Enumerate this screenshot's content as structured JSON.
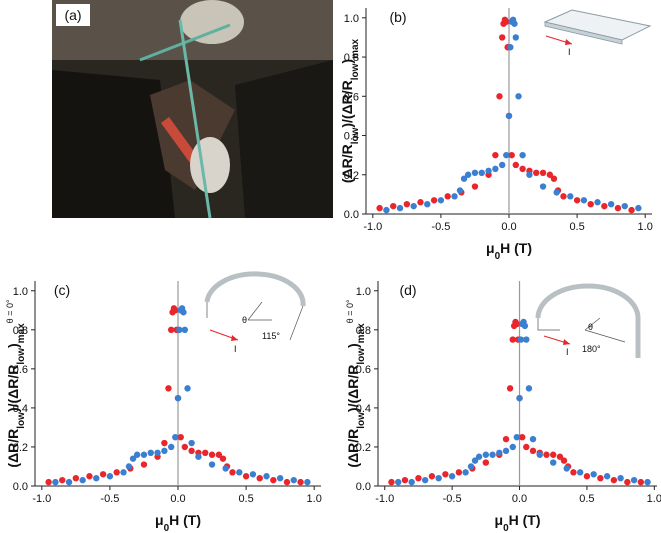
{
  "photo": {
    "label": "(a)"
  },
  "chart_data": [
    {
      "type": "scatter",
      "panel_label": "(b)",
      "inset_labels": {
        "current": "I"
      },
      "xlabel_parts": [
        {
          "text": "μ"
        },
        {
          "text": "0",
          "style": "sub"
        },
        {
          "text": "H (T)"
        }
      ],
      "ylabel_parts": [
        {
          "text": "(ΔR/R"
        },
        {
          "text": "low",
          "style": "sub"
        },
        {
          "text": ")/(ΔR/R"
        },
        {
          "text": "low",
          "style": "sub"
        },
        {
          "text": ")"
        },
        {
          "text": "max",
          "style": "sub"
        }
      ],
      "xlim": [
        -1.05,
        1.05
      ],
      "ylim": [
        0,
        1.05
      ],
      "xticks": [
        {
          "value": -1.0,
          "label": "-1.0"
        },
        -0.5,
        {
          "value": 0.0,
          "label": "0.0"
        },
        0.5,
        {
          "value": 1.0,
          "label": "1.0"
        }
      ],
      "yticks": [
        {
          "value": 0.0,
          "label": "0.0"
        },
        0.2,
        0.4,
        0.6,
        0.8,
        {
          "value": 1.0,
          "label": "1.0"
        }
      ],
      "series": [
        {
          "color": "#e8262b",
          "x": [
            -0.95,
            -0.85,
            -0.75,
            -0.65,
            -0.55,
            -0.45,
            -0.35,
            -0.25,
            -0.15,
            -0.1,
            -0.07,
            -0.05,
            -0.04,
            -0.03,
            -0.02,
            -0.01,
            0.0,
            0.02,
            0.05,
            0.1,
            0.15,
            0.2,
            0.25,
            0.3,
            0.33,
            0.36,
            0.4,
            0.5,
            0.6,
            0.7,
            0.8,
            0.9
          ],
          "values": [
            0.03,
            0.04,
            0.05,
            0.06,
            0.07,
            0.09,
            0.11,
            0.14,
            0.2,
            0.3,
            0.6,
            0.9,
            0.97,
            0.99,
            0.98,
            0.85,
            0.5,
            0.3,
            0.25,
            0.23,
            0.22,
            0.21,
            0.21,
            0.2,
            0.18,
            0.12,
            0.09,
            0.07,
            0.05,
            0.04,
            0.03,
            0.02
          ]
        },
        {
          "color": "#3b7fd1",
          "x": [
            0.95,
            0.85,
            0.75,
            0.65,
            0.55,
            0.45,
            0.35,
            0.25,
            0.15,
            0.1,
            0.07,
            0.05,
            0.04,
            0.03,
            0.02,
            0.01,
            0.0,
            -0.02,
            -0.05,
            -0.1,
            -0.15,
            -0.2,
            -0.25,
            -0.3,
            -0.33,
            -0.36,
            -0.4,
            -0.5,
            -0.6,
            -0.7,
            -0.8,
            -0.9
          ],
          "values": [
            0.03,
            0.04,
            0.05,
            0.06,
            0.07,
            0.09,
            0.11,
            0.14,
            0.2,
            0.3,
            0.6,
            0.9,
            0.97,
            0.99,
            0.98,
            0.85,
            0.5,
            0.3,
            0.25,
            0.23,
            0.22,
            0.21,
            0.21,
            0.2,
            0.18,
            0.12,
            0.09,
            0.07,
            0.05,
            0.04,
            0.03,
            0.02
          ]
        }
      ]
    },
    {
      "type": "scatter",
      "panel_label": "(c)",
      "inset_labels": {
        "current": "I",
        "angle_symbol": "θ",
        "angle": "115°"
      },
      "xlabel_parts": [
        {
          "text": "μ"
        },
        {
          "text": "0",
          "style": "sub"
        },
        {
          "text": "H (T)"
        }
      ],
      "ylabel_parts": [
        {
          "text": "(ΔR/R"
        },
        {
          "text": "low",
          "style": "sub"
        },
        {
          "text": ")/(ΔR/R"
        },
        {
          "text": "low",
          "style": "sub"
        },
        {
          "text": ")"
        },
        {
          "text": "max",
          "style": "sub"
        },
        {
          "text": "θ = 0°",
          "style": "sup"
        }
      ],
      "xlim": [
        -1.05,
        1.05
      ],
      "ylim": [
        0,
        1.05
      ],
      "xticks": [
        {
          "value": -1.0,
          "label": "-1.0"
        },
        -0.5,
        {
          "value": 0.0,
          "label": "0.0"
        },
        0.5,
        {
          "value": 1.0,
          "label": "1.0"
        }
      ],
      "yticks": [
        {
          "value": 0.0,
          "label": "0.0"
        },
        0.2,
        0.4,
        0.6,
        0.8,
        {
          "value": 1.0,
          "label": "1.0"
        }
      ],
      "series": [
        {
          "color": "#e8262b",
          "x": [
            -0.95,
            -0.85,
            -0.75,
            -0.65,
            -0.55,
            -0.45,
            -0.35,
            -0.25,
            -0.15,
            -0.1,
            -0.07,
            -0.05,
            -0.04,
            -0.03,
            -0.02,
            -0.01,
            0.0,
            0.02,
            0.05,
            0.1,
            0.15,
            0.2,
            0.25,
            0.3,
            0.33,
            0.36,
            0.4,
            0.5,
            0.6,
            0.7,
            0.8,
            0.9
          ],
          "values": [
            0.02,
            0.03,
            0.04,
            0.05,
            0.06,
            0.07,
            0.09,
            0.11,
            0.15,
            0.22,
            0.5,
            0.8,
            0.89,
            0.91,
            0.9,
            0.8,
            0.45,
            0.25,
            0.2,
            0.18,
            0.17,
            0.17,
            0.16,
            0.16,
            0.14,
            0.1,
            0.07,
            0.05,
            0.04,
            0.03,
            0.02,
            0.02
          ]
        },
        {
          "color": "#3b7fd1",
          "x": [
            0.95,
            0.85,
            0.75,
            0.65,
            0.55,
            0.45,
            0.35,
            0.25,
            0.15,
            0.1,
            0.07,
            0.05,
            0.04,
            0.03,
            0.02,
            0.01,
            0.0,
            -0.02,
            -0.05,
            -0.1,
            -0.15,
            -0.2,
            -0.25,
            -0.3,
            -0.33,
            -0.36,
            -0.4,
            -0.5,
            -0.6,
            -0.7,
            -0.8,
            -0.9
          ],
          "values": [
            0.02,
            0.03,
            0.04,
            0.05,
            0.06,
            0.07,
            0.09,
            0.11,
            0.15,
            0.22,
            0.5,
            0.8,
            0.89,
            0.91,
            0.9,
            0.8,
            0.45,
            0.25,
            0.2,
            0.18,
            0.17,
            0.17,
            0.16,
            0.16,
            0.14,
            0.1,
            0.07,
            0.05,
            0.04,
            0.03,
            0.02,
            0.02
          ]
        }
      ]
    },
    {
      "type": "scatter",
      "panel_label": "(d)",
      "inset_labels": {
        "current": "I",
        "angle_symbol": "θ",
        "angle": "180°"
      },
      "xlabel_parts": [
        {
          "text": "μ"
        },
        {
          "text": "0",
          "style": "sub"
        },
        {
          "text": "H (T)"
        }
      ],
      "ylabel_parts": [
        {
          "text": "(ΔR/R"
        },
        {
          "text": "low",
          "style": "sub"
        },
        {
          "text": ")/(ΔR/R"
        },
        {
          "text": "low",
          "style": "sub"
        },
        {
          "text": ")"
        },
        {
          "text": "max",
          "style": "sub"
        },
        {
          "text": "θ = 0°",
          "style": "sup"
        }
      ],
      "xlim": [
        -1.05,
        1.02
      ],
      "ylim": [
        0,
        1.05
      ],
      "xticks": [
        {
          "value": -1.0,
          "label": "-1.0"
        },
        -0.5,
        {
          "value": 0.0,
          "label": "0.0"
        },
        0.5,
        {
          "value": 1.0,
          "label": "1.0"
        }
      ],
      "yticks": [
        {
          "value": 0.0,
          "label": "0.0"
        },
        0.2,
        0.4,
        0.6,
        0.8,
        {
          "value": 1.0,
          "label": "1.0"
        }
      ],
      "series": [
        {
          "color": "#e8262b",
          "x": [
            -0.95,
            -0.85,
            -0.75,
            -0.65,
            -0.55,
            -0.45,
            -0.35,
            -0.25,
            -0.15,
            -0.1,
            -0.07,
            -0.05,
            -0.04,
            -0.03,
            -0.02,
            -0.01,
            0.0,
            0.02,
            0.05,
            0.1,
            0.15,
            0.2,
            0.25,
            0.3,
            0.33,
            0.36,
            0.4,
            0.5,
            0.6,
            0.7,
            0.8,
            0.9
          ],
          "values": [
            0.02,
            0.03,
            0.04,
            0.05,
            0.06,
            0.07,
            0.09,
            0.12,
            0.16,
            0.24,
            0.5,
            0.75,
            0.82,
            0.84,
            0.83,
            0.75,
            0.45,
            0.25,
            0.2,
            0.18,
            0.17,
            0.16,
            0.16,
            0.15,
            0.13,
            0.1,
            0.07,
            0.05,
            0.04,
            0.03,
            0.02,
            0.02
          ]
        },
        {
          "color": "#3b7fd1",
          "x": [
            0.95,
            0.85,
            0.75,
            0.65,
            0.55,
            0.45,
            0.35,
            0.25,
            0.15,
            0.1,
            0.07,
            0.05,
            0.04,
            0.03,
            0.02,
            0.01,
            0.0,
            -0.02,
            -0.05,
            -0.1,
            -0.15,
            -0.2,
            -0.25,
            -0.3,
            -0.33,
            -0.36,
            -0.4,
            -0.5,
            -0.6,
            -0.7,
            -0.8,
            -0.9
          ],
          "values": [
            0.02,
            0.03,
            0.04,
            0.05,
            0.06,
            0.07,
            0.09,
            0.12,
            0.16,
            0.24,
            0.5,
            0.75,
            0.82,
            0.84,
            0.83,
            0.75,
            0.45,
            0.25,
            0.2,
            0.18,
            0.17,
            0.16,
            0.16,
            0.15,
            0.13,
            0.1,
            0.07,
            0.05,
            0.04,
            0.03,
            0.02,
            0.02
          ]
        }
      ]
    }
  ]
}
